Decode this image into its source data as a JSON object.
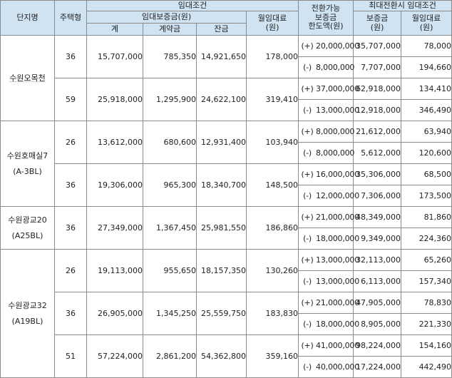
{
  "headers": {
    "complex": "단지명",
    "type": "주택형",
    "rent_conditions": "임대조건",
    "deposit_group": "임대보증금(원)",
    "total": "계",
    "contract": "계약금",
    "balance": "잔금",
    "monthly_rent": [
      "월임대료",
      "(원)"
    ],
    "convertible_limit": [
      "전환가능",
      "보증금",
      "한도액(원)"
    ],
    "max_conversion": "최대전환시 임대조건",
    "conv_deposit": [
      "보증금",
      "(원)"
    ],
    "conv_monthly": [
      "월임대료",
      "(원)"
    ]
  },
  "complexes": [
    {
      "name_lines": [
        "수원오목천"
      ],
      "units": [
        {
          "type": "36",
          "total": "15,707,000",
          "contract": "785,350",
          "balance": "14,921,650",
          "monthly": "178,000",
          "conversions": [
            {
              "sign": "(+)",
              "limit": "20,000,000",
              "deposit": "35,707,000",
              "rent": "78,000"
            },
            {
              "sign": "(-)",
              "limit": "8,000,000",
              "deposit": "7,707,000",
              "rent": "194,660"
            }
          ]
        },
        {
          "type": "59",
          "total": "25,918,000",
          "contract": "1,295,900",
          "balance": "24,622,100",
          "monthly": "319,410",
          "conversions": [
            {
              "sign": "(+)",
              "limit": "37,000,000",
              "deposit": "62,918,000",
              "rent": "134,410"
            },
            {
              "sign": "(-)",
              "limit": "13,000,000",
              "deposit": "12,918,000",
              "rent": "346,490"
            }
          ]
        }
      ]
    },
    {
      "name_lines": [
        "수원호매실7",
        "(A-3BL)"
      ],
      "units": [
        {
          "type": "26",
          "total": "13,612,000",
          "contract": "680,600",
          "balance": "12,931,400",
          "monthly": "103,940",
          "conversions": [
            {
              "sign": "(+)",
              "limit": "8,000,000",
              "deposit": "21,612,000",
              "rent": "63,940"
            },
            {
              "sign": "(-)",
              "limit": "8,000,000",
              "deposit": "5,612,000",
              "rent": "120,600"
            }
          ]
        },
        {
          "type": "36",
          "total": "19,306,000",
          "contract": "965,300",
          "balance": "18,340,700",
          "monthly": "148,500",
          "conversions": [
            {
              "sign": "(+)",
              "limit": "16,000,000",
              "deposit": "35,306,000",
              "rent": "68,500"
            },
            {
              "sign": "(-)",
              "limit": "12,000,000",
              "deposit": "7,306,000",
              "rent": "173,500"
            }
          ]
        }
      ]
    },
    {
      "name_lines": [
        "수원광교20",
        "(A25BL)"
      ],
      "units": [
        {
          "type": "36",
          "total": "27,349,000",
          "contract": "1,367,450",
          "balance": "25,981,550",
          "monthly": "186,860",
          "conversions": [
            {
              "sign": "(+)",
              "limit": "21,000,000",
              "deposit": "48,349,000",
              "rent": "81,860"
            },
            {
              "sign": "(-)",
              "limit": "18,000,000",
              "deposit": "9,349,000",
              "rent": "224,360"
            }
          ]
        }
      ]
    },
    {
      "name_lines": [
        "수원광교32",
        "(A19BL)"
      ],
      "units": [
        {
          "type": "26",
          "total": "19,113,000",
          "contract": "955,650",
          "balance": "18,157,350",
          "monthly": "130,260",
          "conversions": [
            {
              "sign": "(+)",
              "limit": "13,000,000",
              "deposit": "32,113,000",
              "rent": "65,260"
            },
            {
              "sign": "(-)",
              "limit": "13,000,000",
              "deposit": "6,113,000",
              "rent": "157,340"
            }
          ]
        },
        {
          "type": "36",
          "total": "26,905,000",
          "contract": "1,345,250",
          "balance": "25,559,750",
          "monthly": "183,830",
          "conversions": [
            {
              "sign": "(+)",
              "limit": "21,000,000",
              "deposit": "47,905,000",
              "rent": "78,830"
            },
            {
              "sign": "(-)",
              "limit": "18,000,000",
              "deposit": "8,905,000",
              "rent": "221,330"
            }
          ]
        },
        {
          "type": "51",
          "total": "57,224,000",
          "contract": "2,861,200",
          "balance": "54,362,800",
          "monthly": "359,160",
          "conversions": [
            {
              "sign": "(+)",
              "limit": "41,000,000",
              "deposit": "98,224,000",
              "rent": "154,160"
            },
            {
              "sign": "(-)",
              "limit": "40,000,000",
              "deposit": "17,224,000",
              "rent": "442,490"
            }
          ]
        }
      ]
    }
  ]
}
